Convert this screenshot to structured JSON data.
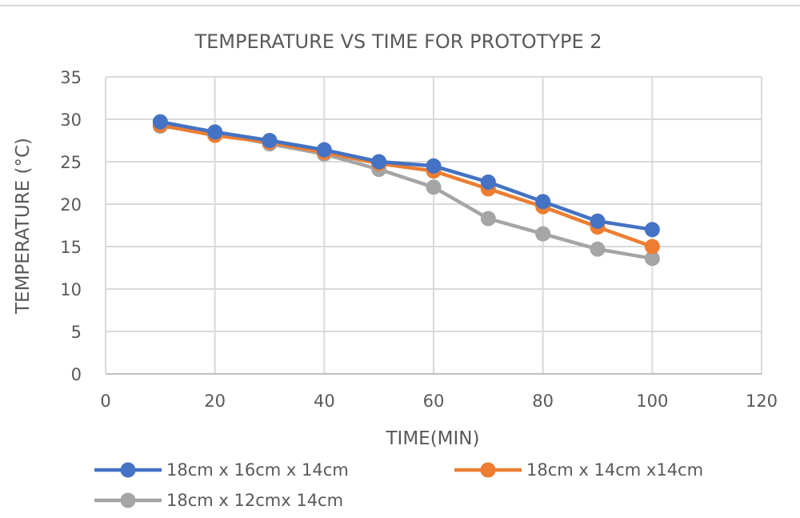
{
  "chart_data": {
    "type": "scatter",
    "title": "TEMPERATURE VS TIME FOR PROTOTYPE 2",
    "xlabel": "TIME(MIN)",
    "ylabel": "TEMPERATURE (°C)",
    "xlim": [
      0,
      120
    ],
    "ylim": [
      0,
      35
    ],
    "x_ticks": [
      0,
      20,
      40,
      60,
      80,
      100,
      120
    ],
    "y_ticks": [
      0,
      5,
      10,
      15,
      20,
      25,
      30,
      35
    ],
    "grid": true,
    "legend_position": "bottom",
    "x": [
      10,
      20,
      30,
      40,
      50,
      60,
      70,
      80,
      90,
      100
    ],
    "series": [
      {
        "name": "18cm x 16cm x 14cm",
        "color": "#4472c4",
        "values": [
          29.7,
          28.5,
          27.5,
          26.4,
          25.0,
          24.5,
          22.6,
          20.3,
          18.0,
          17.0
        ]
      },
      {
        "name": "18cm x 14cm x14cm",
        "color": "#ed7d31",
        "values": [
          29.3,
          28.1,
          27.3,
          26.1,
          24.8,
          23.9,
          21.8,
          19.7,
          17.3,
          15.0
        ]
      },
      {
        "name": "18cm x 12cmx 14cm",
        "color": "#a5a5a5",
        "values": [
          29.2,
          28.4,
          27.1,
          25.9,
          24.1,
          22.0,
          18.3,
          16.5,
          14.7,
          13.6
        ]
      }
    ]
  }
}
